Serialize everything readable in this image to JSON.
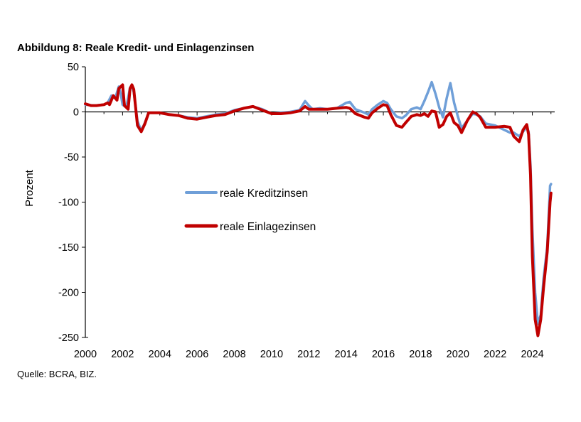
{
  "chart_data": {
    "type": "line",
    "title": "Abbildung 8: Reale Kredit- und Einlagenzinsen",
    "source": "Quelle: BCRA, BIZ.",
    "xlabel": "",
    "ylabel": "Prozent",
    "xlim": [
      2000,
      2025.2
    ],
    "ylim": [
      -250,
      50
    ],
    "x_ticks": [
      2000,
      2002,
      2004,
      2006,
      2008,
      2010,
      2012,
      2014,
      2016,
      2018,
      2020,
      2022,
      2024
    ],
    "y_ticks": [
      50,
      0,
      -50,
      -100,
      -150,
      -200,
      -250
    ],
    "grid": false,
    "legend_position": "center",
    "series": [
      {
        "name": "reale Kreditzinsen",
        "color": "#6f9fd8",
        "points": [
          [
            2000,
            8
          ],
          [
            2000.5,
            7
          ],
          [
            2001,
            8
          ],
          [
            2001.2,
            10
          ],
          [
            2001.4,
            18
          ],
          [
            2001.6,
            15
          ],
          [
            2001.8,
            28
          ],
          [
            2001.9,
            20
          ],
          [
            2002.0,
            8
          ],
          [
            2002.2,
            5
          ],
          [
            2002.4,
            27
          ],
          [
            2002.5,
            29
          ],
          [
            2002.6,
            22
          ],
          [
            2002.8,
            -10
          ],
          [
            2003.0,
            -21
          ],
          [
            2003.2,
            -12
          ],
          [
            2003.4,
            -1
          ],
          [
            2003.6,
            -1
          ],
          [
            2004,
            -1
          ],
          [
            2004.5,
            -3
          ],
          [
            2005,
            -4
          ],
          [
            2005.5,
            -6
          ],
          [
            2006,
            -7
          ],
          [
            2006.5,
            -5
          ],
          [
            2007,
            -3
          ],
          [
            2007.5,
            -2
          ],
          [
            2008,
            2
          ],
          [
            2008.5,
            4
          ],
          [
            2009,
            6
          ],
          [
            2009.5,
            3
          ],
          [
            2010,
            -2
          ],
          [
            2010.5,
            -1
          ],
          [
            2011,
            0
          ],
          [
            2011.5,
            2
          ],
          [
            2011.8,
            12
          ],
          [
            2012.0,
            7
          ],
          [
            2012.2,
            3
          ],
          [
            2012.6,
            4
          ],
          [
            2013,
            3
          ],
          [
            2013.5,
            4
          ],
          [
            2014,
            10
          ],
          [
            2014.2,
            11
          ],
          [
            2014.5,
            3
          ],
          [
            2015,
            -1
          ],
          [
            2015.2,
            -3
          ],
          [
            2015.4,
            3
          ],
          [
            2015.7,
            8
          ],
          [
            2016,
            12
          ],
          [
            2016.2,
            10
          ],
          [
            2016.4,
            3
          ],
          [
            2016.7,
            -5
          ],
          [
            2017,
            -7
          ],
          [
            2017.2,
            -4
          ],
          [
            2017.5,
            3
          ],
          [
            2017.8,
            5
          ],
          [
            2018.0,
            3
          ],
          [
            2018.2,
            12
          ],
          [
            2018.4,
            22
          ],
          [
            2018.6,
            33
          ],
          [
            2018.8,
            20
          ],
          [
            2019.0,
            5
          ],
          [
            2019.2,
            -6
          ],
          [
            2019.4,
            15
          ],
          [
            2019.6,
            32
          ],
          [
            2019.8,
            10
          ],
          [
            2020.0,
            -5
          ],
          [
            2020.2,
            -18
          ],
          [
            2020.5,
            -10
          ],
          [
            2020.8,
            -2
          ],
          [
            2021.0,
            -3
          ],
          [
            2021.2,
            -5
          ],
          [
            2021.5,
            -13
          ],
          [
            2022,
            -15
          ],
          [
            2022.5,
            -20
          ],
          [
            2022.8,
            -23
          ],
          [
            2023.0,
            -23
          ],
          [
            2023.3,
            -27
          ],
          [
            2023.5,
            -22
          ],
          [
            2023.7,
            -17
          ],
          [
            2023.8,
            -22
          ],
          [
            2023.9,
            -60
          ],
          [
            2024.0,
            -130
          ],
          [
            2024.15,
            -200
          ],
          [
            2024.3,
            -235
          ],
          [
            2024.45,
            -225
          ],
          [
            2024.6,
            -185
          ],
          [
            2024.8,
            -150
          ],
          [
            2024.95,
            -82
          ],
          [
            2025.0,
            -80
          ]
        ]
      },
      {
        "name": "reale Einlagezinsen",
        "color": "#c00000",
        "points": [
          [
            2000,
            9
          ],
          [
            2000.3,
            7
          ],
          [
            2000.6,
            7
          ],
          [
            2001,
            8
          ],
          [
            2001.2,
            10
          ],
          [
            2001.3,
            8
          ],
          [
            2001.5,
            18
          ],
          [
            2001.7,
            13
          ],
          [
            2001.8,
            26
          ],
          [
            2002.0,
            30
          ],
          [
            2002.1,
            7
          ],
          [
            2002.3,
            3
          ],
          [
            2002.4,
            26
          ],
          [
            2002.5,
            30
          ],
          [
            2002.6,
            25
          ],
          [
            2002.8,
            -15
          ],
          [
            2003.0,
            -22
          ],
          [
            2003.2,
            -13
          ],
          [
            2003.4,
            -1
          ],
          [
            2003.7,
            -1
          ],
          [
            2004,
            -1
          ],
          [
            2004.5,
            -3
          ],
          [
            2005,
            -4
          ],
          [
            2005.5,
            -7
          ],
          [
            2006,
            -8
          ],
          [
            2006.5,
            -6
          ],
          [
            2007,
            -4
          ],
          [
            2007.5,
            -3
          ],
          [
            2008,
            1
          ],
          [
            2008.5,
            4
          ],
          [
            2009,
            6
          ],
          [
            2009.5,
            2
          ],
          [
            2010,
            -2
          ],
          [
            2010.5,
            -2
          ],
          [
            2011,
            -1
          ],
          [
            2011.5,
            1
          ],
          [
            2011.8,
            6
          ],
          [
            2012.0,
            3
          ],
          [
            2012.2,
            3
          ],
          [
            2012.6,
            3
          ],
          [
            2013,
            3
          ],
          [
            2013.5,
            4
          ],
          [
            2014,
            5
          ],
          [
            2014.2,
            4
          ],
          [
            2014.5,
            -2
          ],
          [
            2015,
            -6
          ],
          [
            2015.2,
            -7
          ],
          [
            2015.4,
            -1
          ],
          [
            2015.7,
            4
          ],
          [
            2016,
            8
          ],
          [
            2016.2,
            7
          ],
          [
            2016.4,
            -3
          ],
          [
            2016.7,
            -15
          ],
          [
            2017,
            -17
          ],
          [
            2017.2,
            -12
          ],
          [
            2017.5,
            -5
          ],
          [
            2017.8,
            -3
          ],
          [
            2018.0,
            -4
          ],
          [
            2018.2,
            -2
          ],
          [
            2018.4,
            -5
          ],
          [
            2018.6,
            1
          ],
          [
            2018.8,
            0
          ],
          [
            2019.0,
            -17
          ],
          [
            2019.2,
            -14
          ],
          [
            2019.4,
            -5
          ],
          [
            2019.6,
            -1
          ],
          [
            2019.8,
            -12
          ],
          [
            2020.0,
            -15
          ],
          [
            2020.2,
            -23
          ],
          [
            2020.5,
            -10
          ],
          [
            2020.8,
            0
          ],
          [
            2021.0,
            -2
          ],
          [
            2021.2,
            -6
          ],
          [
            2021.5,
            -17
          ],
          [
            2022,
            -17
          ],
          [
            2022.5,
            -16
          ],
          [
            2022.8,
            -17
          ],
          [
            2023.0,
            -27
          ],
          [
            2023.3,
            -33
          ],
          [
            2023.5,
            -20
          ],
          [
            2023.7,
            -14
          ],
          [
            2023.8,
            -25
          ],
          [
            2023.9,
            -70
          ],
          [
            2024.0,
            -160
          ],
          [
            2024.15,
            -230
          ],
          [
            2024.3,
            -248
          ],
          [
            2024.45,
            -230
          ],
          [
            2024.6,
            -195
          ],
          [
            2024.8,
            -155
          ],
          [
            2024.95,
            -100
          ],
          [
            2025.0,
            -90
          ]
        ]
      }
    ]
  }
}
